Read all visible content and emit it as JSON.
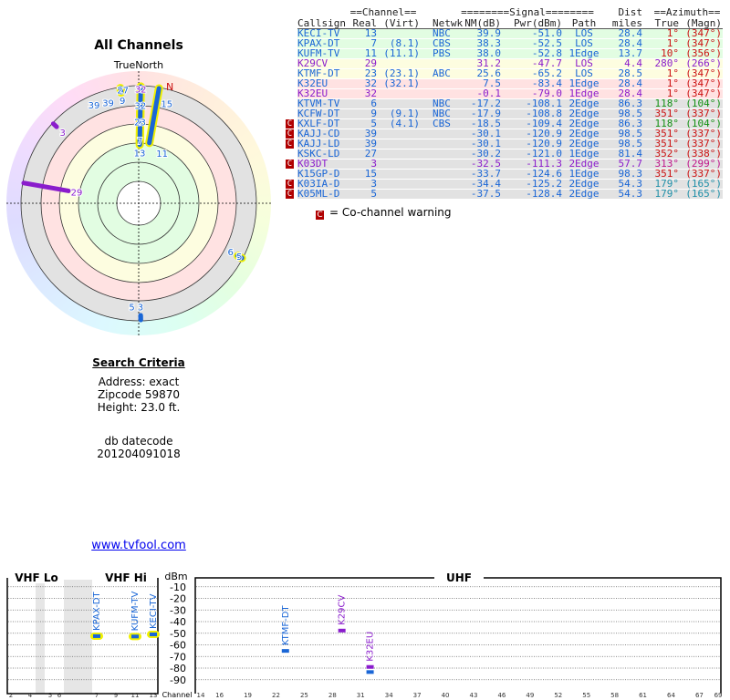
{
  "title": "All Channels",
  "polar": {
    "north_label": "TrueNorth",
    "n_marker": "N"
  },
  "criteria": {
    "heading": "Search Criteria",
    "address": "Address: exact",
    "zipcode": "Zipcode 59870",
    "height": "Height: 23.0 ft."
  },
  "dbdate": {
    "label": "db datecode",
    "value": "201204091018"
  },
  "link": "www.tvfool.com",
  "table": {
    "group_headers": {
      "channel": "==Channel==",
      "signal": "========Signal========",
      "dist": "Dist",
      "azimuth": "==Azimuth=="
    },
    "headers": [
      "Callsign",
      "Real",
      "(Virt)",
      "Netwk",
      "NM(dB)",
      "Pwr(dBm)",
      "Path",
      "miles",
      "True",
      "(Magn)"
    ],
    "rows": [
      {
        "callsign": "KECI-TV",
        "real": "13",
        "virt": "",
        "netwk": "NBC",
        "nm": "39.9",
        "pwr": "-51.0",
        "path": "LOS",
        "dist": "28.4",
        "true": "1°",
        "magn": "(347°)",
        "band": "green",
        "color": "blue",
        "az_color": "red",
        "warn": false
      },
      {
        "callsign": "KPAX-DT",
        "real": "7",
        "virt": "(8.1)",
        "netwk": "CBS",
        "nm": "38.3",
        "pwr": "-52.5",
        "path": "LOS",
        "dist": "28.4",
        "true": "1°",
        "magn": "(347°)",
        "band": "green",
        "color": "blue",
        "az_color": "red",
        "warn": false
      },
      {
        "callsign": "KUFM-TV",
        "real": "11",
        "virt": "(11.1)",
        "netwk": "PBS",
        "nm": "38.0",
        "pwr": "-52.8",
        "path": "1Edge",
        "dist": "13.7",
        "true": "10°",
        "magn": "(356°)",
        "band": "green",
        "color": "blue",
        "az_color": "red",
        "warn": false
      },
      {
        "callsign": "K29CV",
        "real": "29",
        "virt": "",
        "netwk": "",
        "nm": "31.2",
        "pwr": "-47.7",
        "path": "LOS",
        "dist": "4.4",
        "true": "280°",
        "magn": "(266°)",
        "band": "yellow",
        "color": "purple",
        "az_color": "purple",
        "warn": false
      },
      {
        "callsign": "KTMF-DT",
        "real": "23",
        "virt": "(23.1)",
        "netwk": "ABC",
        "nm": "25.6",
        "pwr": "-65.2",
        "path": "LOS",
        "dist": "28.5",
        "true": "1°",
        "magn": "(347°)",
        "band": "yellow",
        "color": "blue",
        "az_color": "red",
        "warn": false
      },
      {
        "callsign": "K32EU",
        "real": "32",
        "virt": "(32.1)",
        "netwk": "",
        "nm": "7.5",
        "pwr": "-83.4",
        "path": "1Edge",
        "dist": "28.4",
        "true": "1°",
        "magn": "(347°)",
        "band": "pink",
        "color": "blue",
        "az_color": "red",
        "warn": false
      },
      {
        "callsign": "K32EU",
        "real": "32",
        "virt": "",
        "netwk": "",
        "nm": "-0.1",
        "pwr": "-79.0",
        "path": "1Edge",
        "dist": "28.4",
        "true": "1°",
        "magn": "(347°)",
        "band": "pink",
        "color": "purple",
        "az_color": "red",
        "warn": false
      },
      {
        "callsign": "KTVM-TV",
        "real": "6",
        "virt": "",
        "netwk": "NBC",
        "nm": "-17.2",
        "pwr": "-108.1",
        "path": "2Edge",
        "dist": "86.3",
        "true": "118°",
        "magn": "(104°)",
        "band": "gray",
        "color": "blue",
        "az_color": "green",
        "warn": false
      },
      {
        "callsign": "KCFW-DT",
        "real": "9",
        "virt": "(9.1)",
        "netwk": "NBC",
        "nm": "-17.9",
        "pwr": "-108.8",
        "path": "2Edge",
        "dist": "98.5",
        "true": "351°",
        "magn": "(337°)",
        "band": "gray",
        "color": "blue",
        "az_color": "red",
        "warn": false
      },
      {
        "callsign": "KXLF-DT",
        "real": "5",
        "virt": "(4.1)",
        "netwk": "CBS",
        "nm": "-18.5",
        "pwr": "-109.4",
        "path": "2Edge",
        "dist": "86.3",
        "true": "118°",
        "magn": "(104°)",
        "band": "gray",
        "color": "blue",
        "az_color": "green",
        "warn": true
      },
      {
        "callsign": "KAJJ-CD",
        "real": "39",
        "virt": "",
        "netwk": "",
        "nm": "-30.1",
        "pwr": "-120.9",
        "path": "2Edge",
        "dist": "98.5",
        "true": "351°",
        "magn": "(337°)",
        "band": "gray",
        "color": "blue",
        "az_color": "red",
        "warn": true
      },
      {
        "callsign": "KAJJ-LD",
        "real": "39",
        "virt": "",
        "netwk": "",
        "nm": "-30.1",
        "pwr": "-120.9",
        "path": "2Edge",
        "dist": "98.5",
        "true": "351°",
        "magn": "(337°)",
        "band": "gray",
        "color": "blue",
        "az_color": "red",
        "warn": true
      },
      {
        "callsign": "KSKC-LD",
        "real": "27",
        "virt": "",
        "netwk": "",
        "nm": "-30.2",
        "pwr": "-121.0",
        "path": "1Edge",
        "dist": "81.4",
        "true": "352°",
        "magn": "(338°)",
        "band": "gray",
        "color": "blue",
        "az_color": "red",
        "warn": false
      },
      {
        "callsign": "K03DT",
        "real": "3",
        "virt": "",
        "netwk": "",
        "nm": "-32.5",
        "pwr": "-111.3",
        "path": "2Edge",
        "dist": "57.7",
        "true": "313°",
        "magn": "(299°)",
        "band": "gray",
        "color": "purple",
        "az_color": "magenta",
        "warn": true
      },
      {
        "callsign": "K15GP-D",
        "real": "15",
        "virt": "",
        "netwk": "",
        "nm": "-33.7",
        "pwr": "-124.6",
        "path": "1Edge",
        "dist": "98.3",
        "true": "351°",
        "magn": "(337°)",
        "band": "gray",
        "color": "blue",
        "az_color": "red",
        "warn": false
      },
      {
        "callsign": "K03IA-D",
        "real": "3",
        "virt": "",
        "netwk": "",
        "nm": "-34.4",
        "pwr": "-125.2",
        "path": "2Edge",
        "dist": "54.3",
        "true": "179°",
        "magn": "(165°)",
        "band": "gray",
        "color": "blue",
        "az_color": "teal",
        "warn": true
      },
      {
        "callsign": "K05ML-D",
        "real": "5",
        "virt": "",
        "netwk": "",
        "nm": "-37.5",
        "pwr": "-128.4",
        "path": "2Edge",
        "dist": "54.3",
        "true": "179°",
        "magn": "(165°)",
        "band": "gray",
        "color": "blue",
        "az_color": "teal",
        "warn": true
      }
    ]
  },
  "legend": {
    "mark": "C",
    "text": "= Co-channel warning"
  },
  "spectrum": {
    "unit": "dBm",
    "channel_label": "Channel",
    "vhf_lo": "VHF Lo",
    "vhf_hi": "VHF Hi",
    "uhf": "UHF",
    "y_ticks": [
      "-10",
      "-20",
      "-30",
      "-40",
      "-50",
      "-60",
      "-70",
      "-80",
      "-90"
    ],
    "vhf_ticks": [
      "2",
      "4",
      "5",
      "6",
      "7",
      "9",
      "11",
      "13"
    ],
    "uhf_ticks": [
      "14",
      "16",
      "19",
      "22",
      "25",
      "28",
      "31",
      "34",
      "37",
      "40",
      "43",
      "46",
      "49",
      "52",
      "55",
      "58",
      "61",
      "64",
      "67",
      "69"
    ],
    "markers": [
      {
        "callsign": "KPAX-DT",
        "channel": 7,
        "pwr": -52.5,
        "color": "blue",
        "outline": true
      },
      {
        "callsign": "KUFM-TV",
        "channel": 11,
        "pwr": -52.8,
        "color": "blue",
        "outline": true
      },
      {
        "callsign": "KECI-TV",
        "channel": 13,
        "pwr": -51.0,
        "color": "blue",
        "outline": true
      },
      {
        "callsign": "KTMF-DT",
        "channel": 23,
        "pwr": -65.2,
        "color": "blue",
        "outline": false
      },
      {
        "callsign": "K29CV",
        "channel": 29,
        "pwr": -47.7,
        "color": "purple",
        "outline": false
      },
      {
        "callsign": "K32EU",
        "channel": 32,
        "pwr": -79.0,
        "color": "purple",
        "outline": false
      },
      {
        "callsign": "K32EU",
        "channel": 32,
        "pwr": -83.4,
        "color": "blue",
        "outline": false
      }
    ]
  },
  "colors": {
    "blue": "#1a66d6",
    "purple": "#8a1ccc",
    "red": "#cc1010",
    "green": "#139013",
    "teal": "#1f8fa8",
    "magenta": "#c0148a",
    "green_band": "#e2fde2",
    "yellow_band": "#fdfde0",
    "pink_band": "#ffe2e2",
    "gray_band": "#e2e2e2",
    "warn": "#b00000",
    "outline": "#f0f000"
  }
}
